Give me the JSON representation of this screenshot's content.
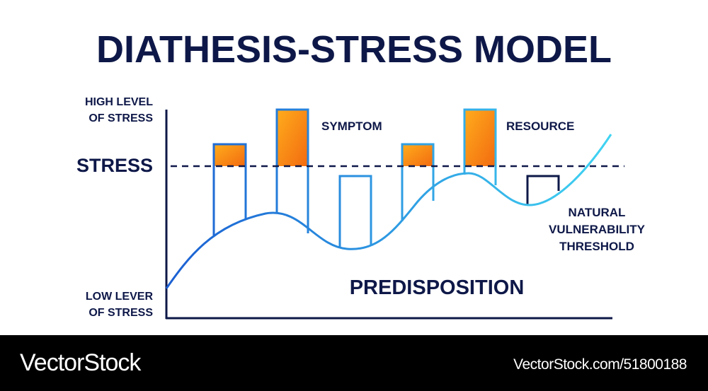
{
  "title": "DIATHESIS-STRESS MODEL",
  "labels": {
    "high_stress_line1": "HIGH LEVEL",
    "high_stress_line2": "OF STRESS",
    "stress": "STRESS",
    "low_stress_line1": "LOW LEVER",
    "low_stress_line2": "OF STRESS",
    "symptom": "SYMPTOM",
    "resource": "RESOURCE",
    "threshold_line1": "NATURAL",
    "threshold_line2": "VULNERABILITY",
    "threshold_line3": "THRESHOLD",
    "predisposition": "PREDISPOSITION"
  },
  "colors": {
    "navy": "#0e1848",
    "curve_start": "#1b5fd2",
    "curve_end": "#40d4f2",
    "symptom_fill_top": "#ffab1c",
    "symptom_fill_bottom": "#f26b10"
  },
  "footer": {
    "logo": "VectorStock",
    "url": "VectorStock.com/51800188"
  }
}
